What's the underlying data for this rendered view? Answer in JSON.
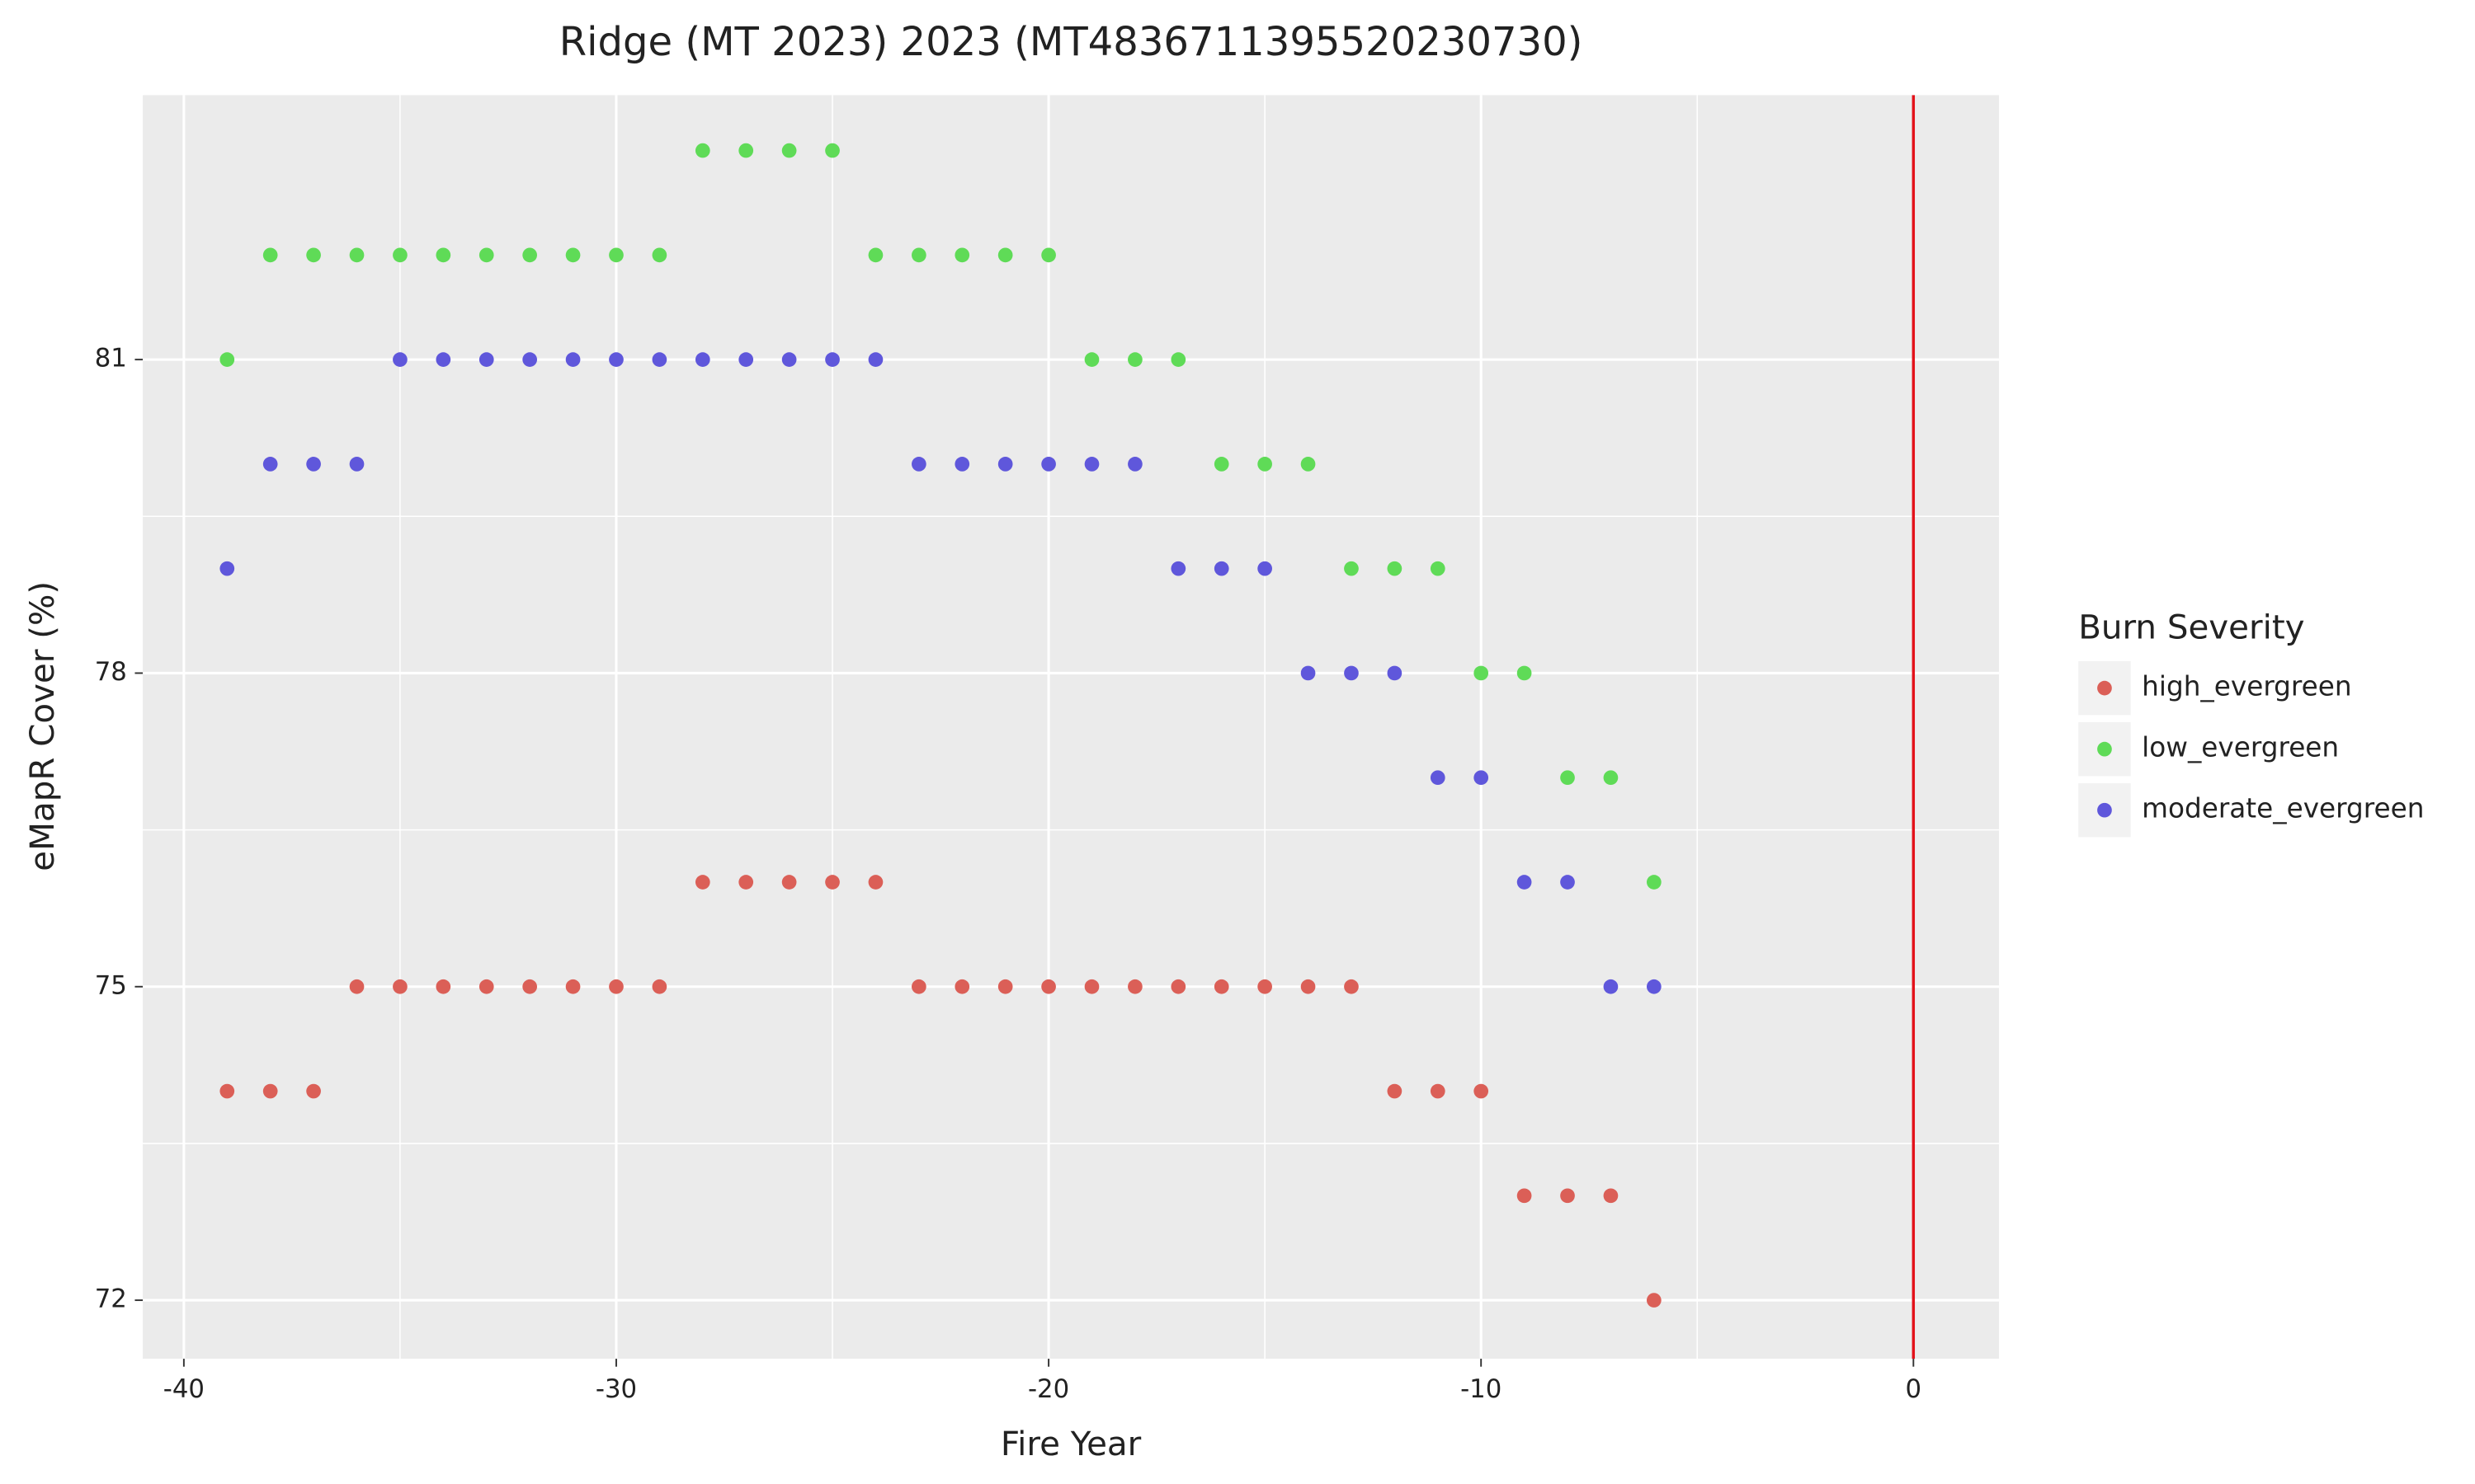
{
  "chart_data": {
    "type": "scatter",
    "title": "Ridge (MT 2023) 2023 (MT4836711395520230730)",
    "xlabel": "Fire Year",
    "ylabel": "eMapR Cover (%)",
    "legend_title": "Burn Severity",
    "legend": "right",
    "xlim": [
      -40.95,
      1.98
    ],
    "ylim": [
      71.44,
      83.53
    ],
    "xticks": [
      -40,
      -30,
      -20,
      -10,
      0
    ],
    "yticks": [
      72,
      75,
      78,
      81
    ],
    "grid": true,
    "vline": {
      "x": 0,
      "color": "#e3121b"
    },
    "series": [
      {
        "name": "high_evergreen",
        "color": "#db5f57",
        "x": [
          -39,
          -38,
          -37,
          -36,
          -35,
          -34,
          -33,
          -32,
          -31,
          -30,
          -29,
          -28,
          -27,
          -26,
          -25,
          -24,
          -23,
          -22,
          -21,
          -20,
          -19,
          -18,
          -17,
          -16,
          -15,
          -14,
          -13,
          -12,
          -11,
          -10,
          -9,
          -8,
          -7,
          -6
        ],
        "values": [
          74,
          74,
          74,
          75,
          75,
          75,
          75,
          75,
          75,
          75,
          75,
          76,
          76,
          76,
          76,
          76,
          75,
          75,
          75,
          75,
          75,
          75,
          75,
          75,
          75,
          75,
          75,
          74,
          74,
          74,
          73,
          73,
          73,
          72
        ]
      },
      {
        "name": "low_evergreen",
        "color": "#5fdb57",
        "x": [
          -39,
          -38,
          -37,
          -36,
          -35,
          -34,
          -33,
          -32,
          -31,
          -30,
          -29,
          -28,
          -27,
          -26,
          -25,
          -24,
          -23,
          -22,
          -21,
          -20,
          -19,
          -18,
          -17,
          -16,
          -15,
          -14,
          -13,
          -12,
          -11,
          -10,
          -9,
          -8,
          -7,
          -6
        ],
        "values": [
          81,
          82,
          82,
          82,
          82,
          82,
          82,
          82,
          82,
          82,
          82,
          83,
          83,
          83,
          83,
          82,
          82,
          82,
          82,
          82,
          81,
          81,
          81,
          80,
          80,
          80,
          79,
          79,
          79,
          78,
          78,
          77,
          77,
          76
        ]
      },
      {
        "name": "moderate_evergreen",
        "color": "#5f57db",
        "x": [
          -39,
          -38,
          -37,
          -36,
          -35,
          -34,
          -33,
          -32,
          -31,
          -30,
          -29,
          -28,
          -27,
          -26,
          -25,
          -24,
          -23,
          -22,
          -21,
          -20,
          -19,
          -18,
          -17,
          -16,
          -15,
          -14,
          -13,
          -12,
          -11,
          -10,
          -9,
          -8,
          -7,
          -6
        ],
        "values": [
          79,
          80,
          80,
          80,
          81,
          81,
          81,
          81,
          81,
          81,
          81,
          81,
          81,
          81,
          81,
          81,
          80,
          80,
          80,
          80,
          80,
          80,
          79,
          79,
          79,
          78,
          78,
          78,
          77,
          77,
          76,
          76,
          75,
          75
        ]
      }
    ]
  }
}
